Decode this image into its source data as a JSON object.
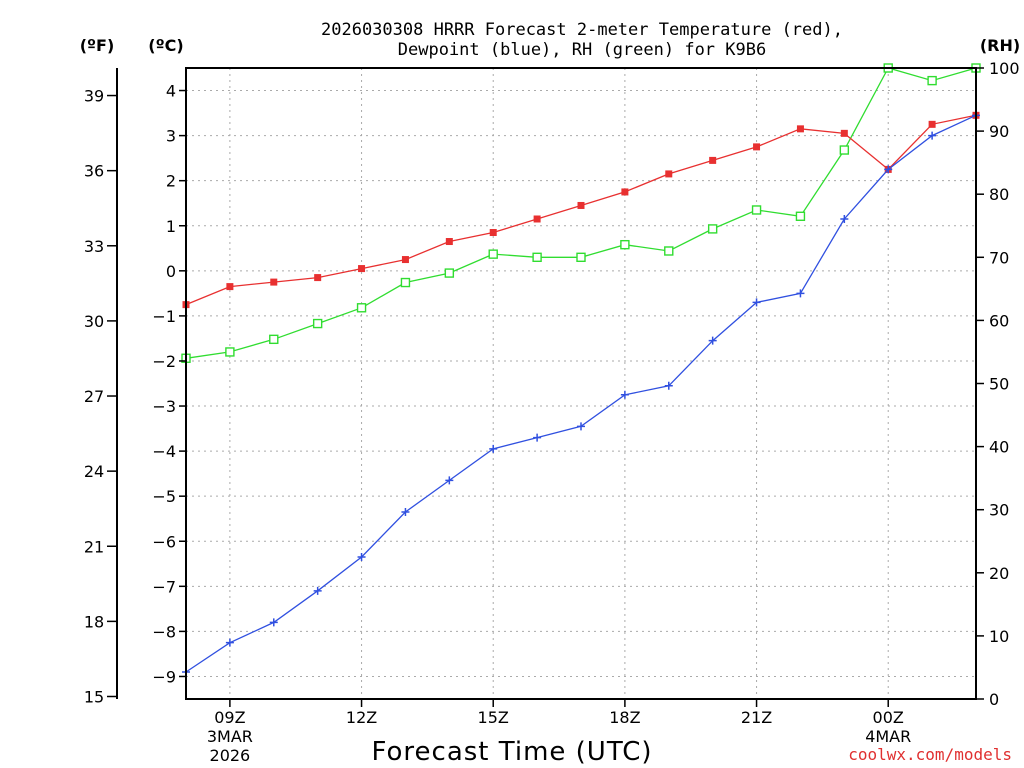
{
  "chart_data": {
    "type": "line",
    "title_line1": "2026030308 HRRR Forecast 2-meter Temperature (red),",
    "title_line2": "Dewpoint (blue), RH (green) for K9B6",
    "xlabel": "Forecast Time (UTC)",
    "credit": "coolwx.com/models",
    "units": {
      "fahrenheit": "(ºF)",
      "celsius": "(ºC)",
      "rh": "(RH)"
    },
    "x_range": [
      8,
      26
    ],
    "celsius_range": [
      -9.5,
      4.5
    ],
    "rh_range": [
      0,
      100
    ],
    "celsius_ticks": [
      4,
      3,
      2,
      1,
      0,
      -1,
      -2,
      -3,
      -4,
      -5,
      -6,
      -7,
      -8,
      -9
    ],
    "celsius_tick_labels": [
      "4",
      "3",
      "2",
      "1",
      "0",
      "−1",
      "−2",
      "−3",
      "−4",
      "−5",
      "−6",
      "−7",
      "−8",
      "−9"
    ],
    "fahrenheit_ticks": [
      39,
      36,
      33,
      30,
      27,
      24,
      21,
      18,
      15
    ],
    "fahrenheit_tick_labels": [
      "39",
      "36",
      "33",
      "30",
      "27",
      "24",
      "21",
      "18",
      "15"
    ],
    "rh_ticks": [
      100,
      90,
      80,
      70,
      60,
      50,
      40,
      30,
      20,
      10,
      0
    ],
    "rh_tick_labels": [
      "100",
      "90",
      "80",
      "70",
      "60",
      "50",
      "40",
      "30",
      "20",
      "10",
      "0"
    ],
    "x_ticks": [
      {
        "hour": 9,
        "label": "09Z",
        "sub1": "3MAR",
        "sub2": "2026"
      },
      {
        "hour": 12,
        "label": "12Z",
        "sub1": "",
        "sub2": ""
      },
      {
        "hour": 15,
        "label": "15Z",
        "sub1": "",
        "sub2": ""
      },
      {
        "hour": 18,
        "label": "18Z",
        "sub1": "",
        "sub2": ""
      },
      {
        "hour": 21,
        "label": "21Z",
        "sub1": "",
        "sub2": ""
      },
      {
        "hour": 24,
        "label": "00Z",
        "sub1": "4MAR",
        "sub2": ""
      }
    ],
    "x": [
      8,
      9,
      10,
      11,
      12,
      13,
      14,
      15,
      16,
      17,
      18,
      19,
      20,
      21,
      22,
      23,
      24,
      25,
      26
    ],
    "series": [
      {
        "name": "Temperature",
        "axis": "celsius",
        "color": "#e83030",
        "marker": "filled-square",
        "values": [
          -0.75,
          -0.35,
          -0.25,
          -0.15,
          0.05,
          0.25,
          0.65,
          0.85,
          1.15,
          1.45,
          1.75,
          2.15,
          2.45,
          2.75,
          3.15,
          3.05,
          2.25,
          3.25,
          3.45
        ]
      },
      {
        "name": "Dewpoint",
        "axis": "celsius",
        "color": "#3050e0",
        "marker": "plus",
        "values": [
          -8.9,
          -8.25,
          -7.8,
          -7.1,
          -6.35,
          -5.35,
          -4.65,
          -3.95,
          -3.7,
          -3.45,
          -2.75,
          -2.55,
          -1.55,
          -0.7,
          -0.5,
          1.15,
          2.25,
          3.0,
          3.45
        ]
      },
      {
        "name": "Relative Humidity",
        "axis": "rh",
        "color": "#30dd30",
        "marker": "open-square",
        "values": [
          54,
          55,
          57,
          59.5,
          62,
          66,
          67.5,
          70.5,
          70,
          70,
          72,
          71,
          74.5,
          77.5,
          76.5,
          87,
          100,
          98,
          100
        ]
      }
    ]
  }
}
